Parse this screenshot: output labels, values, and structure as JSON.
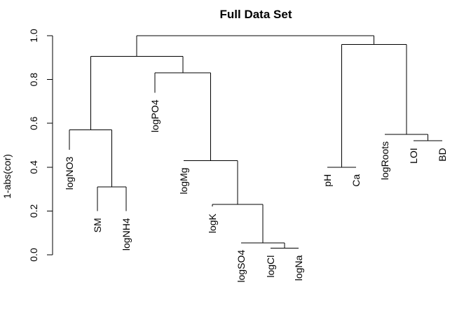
{
  "chart_data": {
    "type": "dendrogram",
    "title": "Full Data Set",
    "ylabel": "1-abs(cor)",
    "xlabel": "",
    "ylim": [
      0.0,
      1.0
    ],
    "yticks": [
      "0.0",
      "0.2",
      "0.4",
      "0.6",
      "0.8",
      "1.0"
    ],
    "ytick_values": [
      0.0,
      0.2,
      0.4,
      0.6,
      0.8,
      1.0
    ],
    "leaf_order": [
      "logNO3",
      "SM",
      "logNH4",
      "logPO4",
      "logMg",
      "logK",
      "logSO4",
      "logCl",
      "logNa",
      "pH",
      "Ca",
      "logRoots",
      "LOI",
      "BD"
    ],
    "leaf_heights": [
      0.48,
      0.2,
      0.2,
      0.74,
      0.43,
      0.22,
      0.055,
      0.03,
      0.03,
      0.4,
      0.4,
      0.55,
      0.52,
      0.52
    ],
    "merges": [
      {
        "id": "m1",
        "children": [
          "logCl",
          "logNa"
        ],
        "height": 0.03
      },
      {
        "id": "m2",
        "children": [
          "logSO4",
          "m1"
        ],
        "height": 0.055
      },
      {
        "id": "m3",
        "children": [
          "logK",
          "m2"
        ],
        "height": 0.23
      },
      {
        "id": "m4",
        "children": [
          "SM",
          "logNH4"
        ],
        "height": 0.31
      },
      {
        "id": "m5",
        "children": [
          "pH",
          "Ca"
        ],
        "height": 0.4
      },
      {
        "id": "m6",
        "children": [
          "logMg",
          "m3"
        ],
        "height": 0.43
      },
      {
        "id": "m7",
        "children": [
          "LOI",
          "BD"
        ],
        "height": 0.52
      },
      {
        "id": "m8",
        "children": [
          "logRoots",
          "m7"
        ],
        "height": 0.55
      },
      {
        "id": "m9",
        "children": [
          "logNO3",
          "m4"
        ],
        "height": 0.57
      },
      {
        "id": "m10",
        "children": [
          "logPO4",
          "m6"
        ],
        "height": 0.83
      },
      {
        "id": "m11",
        "children": [
          "m9",
          "m10"
        ],
        "height": 0.905
      },
      {
        "id": "m12",
        "children": [
          "m5",
          "m8"
        ],
        "height": 0.96
      },
      {
        "id": "m13",
        "children": [
          "m11",
          "m12"
        ],
        "height": 1.0
      }
    ]
  }
}
